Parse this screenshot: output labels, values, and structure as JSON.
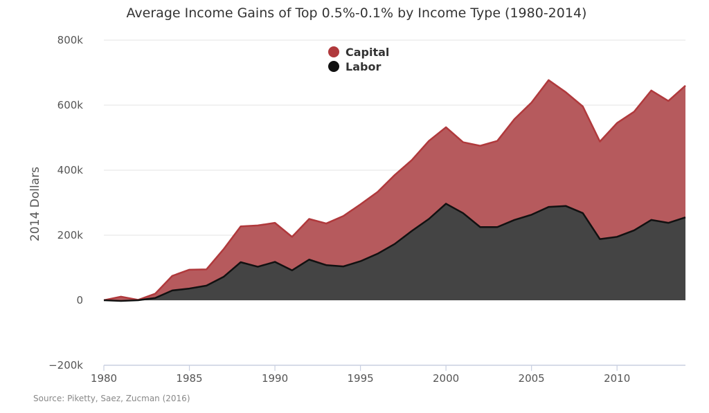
{
  "chart_data": {
    "type": "area",
    "title": "Average Income Gains of Top 0.5%-0.1% by Income Type (1980-2014)",
    "ylabel": "2014 Dollars",
    "xlabel": "",
    "source": "Source: Piketty, Saez, Zucman (2016)",
    "xlim": [
      1980,
      2014
    ],
    "ylim": [
      -200000,
      800000
    ],
    "x_ticks": [
      1980,
      1985,
      1990,
      1995,
      2000,
      2005,
      2010
    ],
    "y_ticks": [
      -200000,
      0,
      200000,
      400000,
      600000,
      800000
    ],
    "y_tick_labels": [
      "−200k",
      "0",
      "200k",
      "400k",
      "600k",
      "800k"
    ],
    "grid": true,
    "legend_position": "top-center",
    "x": [
      1980,
      1981,
      1982,
      1983,
      1984,
      1985,
      1986,
      1987,
      1988,
      1989,
      1990,
      1991,
      1992,
      1993,
      1994,
      1995,
      1996,
      1997,
      1998,
      1999,
      2000,
      2001,
      2002,
      2003,
      2004,
      2005,
      2006,
      2007,
      2008,
      2009,
      2010,
      2011,
      2012,
      2013,
      2014
    ],
    "series": [
      {
        "name": "Capital",
        "color": "#b0393c",
        "fill": "#b65a5d",
        "values": [
          0,
          13000,
          1000,
          13000,
          45000,
          58000,
          50000,
          85000,
          110000,
          127000,
          120000,
          103000,
          125000,
          128000,
          155000,
          175000,
          190000,
          212000,
          218000,
          240000,
          235000,
          218000,
          250000,
          265000,
          310000,
          345000,
          390000,
          350000,
          328000,
          300000,
          350000,
          365000,
          398000,
          375000,
          405000
        ]
      },
      {
        "name": "Labor",
        "color": "#111111",
        "fill": "#444444",
        "values": [
          0,
          -2000,
          0,
          7000,
          30000,
          36000,
          45000,
          72000,
          117000,
          103000,
          118000,
          92000,
          125000,
          108000,
          104000,
          120000,
          143000,
          173000,
          213000,
          250000,
          297000,
          268000,
          225000,
          225000,
          247000,
          263000,
          287000,
          290000,
          268000,
          188000,
          195000,
          215000,
          247000,
          238000,
          255000
        ]
      }
    ]
  }
}
